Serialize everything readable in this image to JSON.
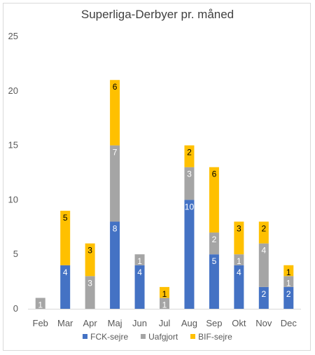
{
  "chart_data": {
    "type": "bar",
    "stacked": true,
    "title": "Superliga-Derbyer pr. måned",
    "categories": [
      "Feb",
      "Mar",
      "Apr",
      "Maj",
      "Jun",
      "Jul",
      "Aug",
      "Sep",
      "Okt",
      "Nov",
      "Dec"
    ],
    "series": [
      {
        "name": "FCK-sejre",
        "color": "#4472C4",
        "label_color": "#ffffff",
        "values": [
          0,
          4,
          0,
          8,
          4,
          0,
          10,
          5,
          4,
          2,
          2
        ]
      },
      {
        "name": "Uafgjort",
        "color": "#A5A5A5",
        "label_color": "#ffffff",
        "values": [
          1,
          0,
          3,
          7,
          1,
          1,
          3,
          2,
          1,
          4,
          1
        ]
      },
      {
        "name": "BIF-sejre",
        "color": "#FFC000",
        "label_color": "#000000",
        "values": [
          0,
          5,
          3,
          6,
          0,
          1,
          2,
          6,
          3,
          2,
          1
        ]
      }
    ],
    "ylim": [
      0,
      25
    ],
    "yticks": [
      0,
      5,
      10,
      15,
      20,
      25
    ],
    "grid": false,
    "legend_position": "bottom",
    "xlabel": "",
    "ylabel": ""
  }
}
